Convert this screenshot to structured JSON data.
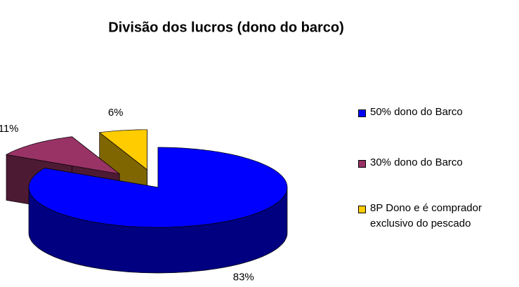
{
  "chart_data": {
    "type": "pie3d",
    "title": "Divisão dos lucros (dono do barco)",
    "categories": [
      "50% dono do Barco",
      "30% dono do Barco",
      "8P Dono e é comprador exclusivo do pescado"
    ],
    "values": [
      83,
      11,
      6
    ],
    "value_labels": [
      "83%",
      "11%",
      "6%"
    ],
    "colors": [
      "#0000ff",
      "#993366",
      "#ffcc00"
    ],
    "legend": "right"
  }
}
